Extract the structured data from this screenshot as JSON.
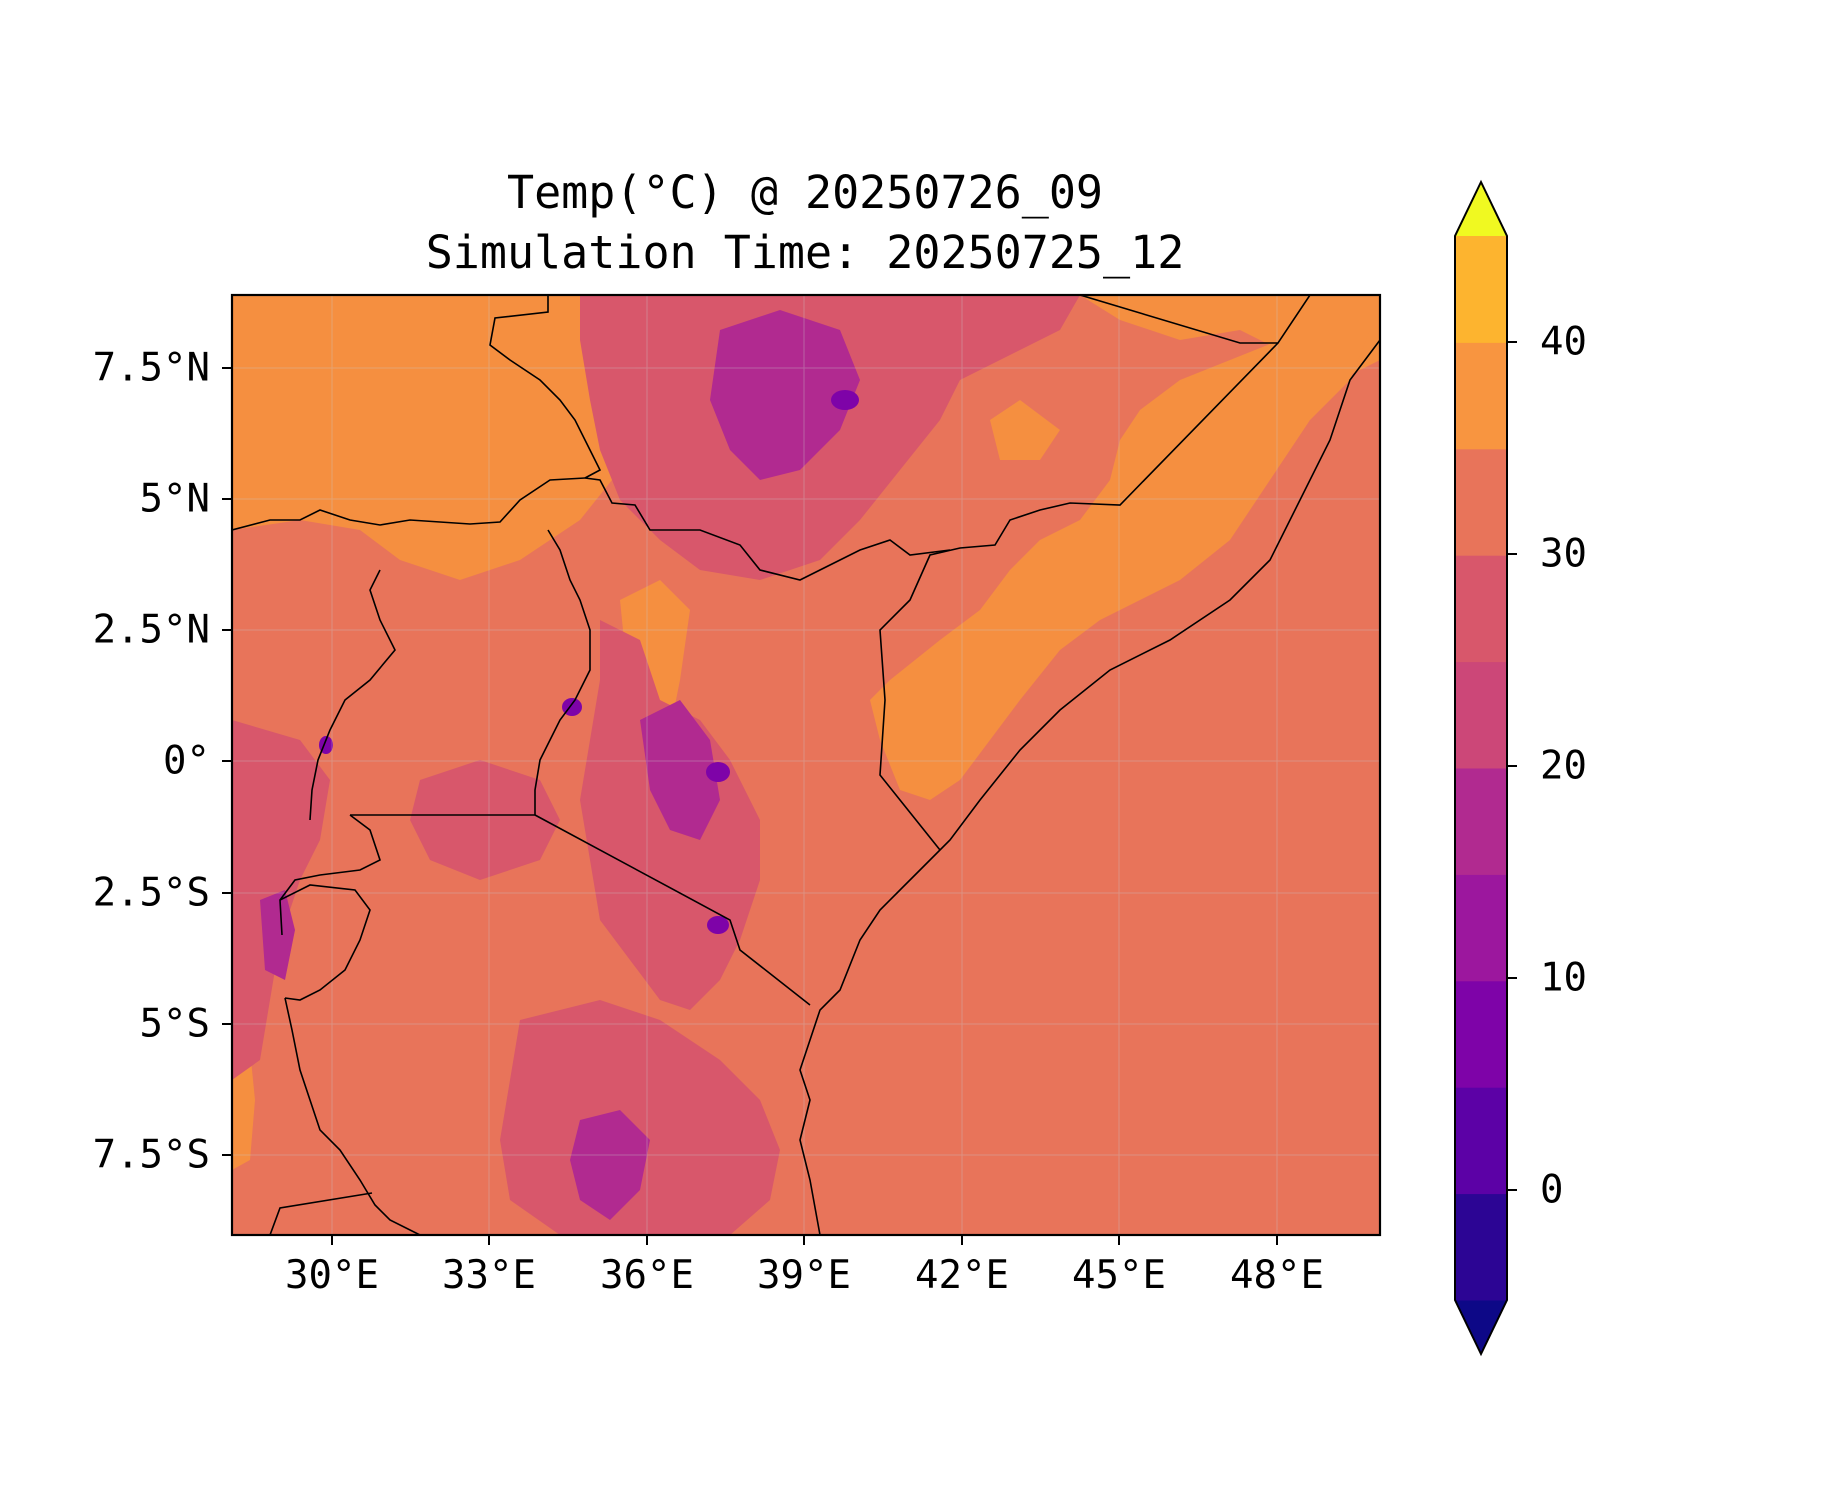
{
  "title": {
    "line1": "Temp(°C) @ 20250726_09",
    "line2": "Simulation Time: 20250725_12"
  },
  "map": {
    "lon_range": [
      27.5,
      49.5
    ],
    "lat_range": [
      -9,
      9
    ],
    "y_ticks": [
      "7.5°N",
      "5°N",
      "2.5°N",
      "0°",
      "2.5°S",
      "5°S",
      "7.5°S"
    ],
    "x_ticks": [
      "30°E",
      "33°E",
      "36°E",
      "39°E",
      "42°E",
      "45°E",
      "48°E"
    ],
    "background_class_color": "#e8745a",
    "gridlines": true,
    "borders": "black country borders and coastline"
  },
  "colorbar": {
    "ticks": [
      "40",
      "30",
      "20",
      "10",
      "0"
    ],
    "levels": [
      -5,
      0,
      5,
      10,
      15,
      20,
      25,
      30,
      35,
      40,
      45
    ],
    "colors": [
      "#0d0887",
      "#2c0594",
      "#5c01a6",
      "#7e03a8",
      "#9c179e",
      "#b12a90",
      "#cc4778",
      "#d8576b",
      "#e8745a",
      "#f89540",
      "#fdb42f",
      "#f0f921"
    ],
    "extend": "both"
  }
}
